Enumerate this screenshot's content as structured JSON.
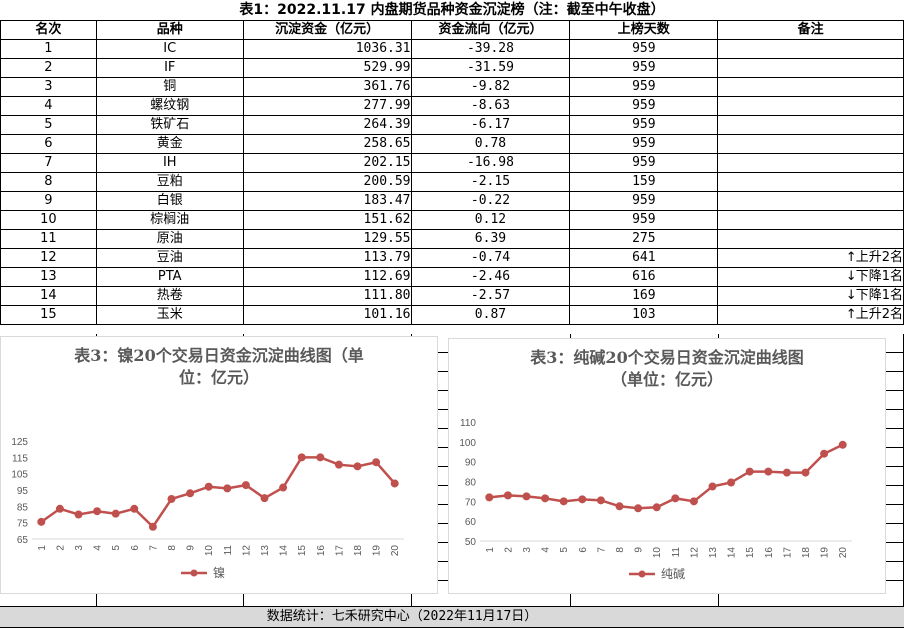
{
  "table_title": "表1：2022.11.17 内盘期货品种资金沉淀榜（注：截至中午收盘）",
  "headers": [
    "名次",
    "品种",
    "沉淀资金（亿元）",
    "资金流向（亿元）",
    "上榜天数",
    "备注"
  ],
  "rows": [
    {
      "rank": "1",
      "name": "IC",
      "amount": "1036.31",
      "flow": "-39.28",
      "days": "959",
      "note": ""
    },
    {
      "rank": "2",
      "name": "IF",
      "amount": "529.99",
      "flow": "-31.59",
      "days": "959",
      "note": ""
    },
    {
      "rank": "3",
      "name": "铜",
      "amount": "361.76",
      "flow": "-9.82",
      "days": "959",
      "note": ""
    },
    {
      "rank": "4",
      "name": "螺纹钢",
      "amount": "277.99",
      "flow": "-8.63",
      "days": "959",
      "note": ""
    },
    {
      "rank": "5",
      "name": "铁矿石",
      "amount": "264.39",
      "flow": "-6.17",
      "days": "959",
      "note": ""
    },
    {
      "rank": "6",
      "name": "黄金",
      "amount": "258.65",
      "flow": "0.78",
      "days": "959",
      "note": ""
    },
    {
      "rank": "7",
      "name": "IH",
      "amount": "202.15",
      "flow": "-16.98",
      "days": "959",
      "note": ""
    },
    {
      "rank": "8",
      "name": "豆粕",
      "amount": "200.59",
      "flow": "-2.15",
      "days": "159",
      "note": ""
    },
    {
      "rank": "9",
      "name": "白银",
      "amount": "183.47",
      "flow": "-0.22",
      "days": "959",
      "note": ""
    },
    {
      "rank": "10",
      "name": "棕榈油",
      "amount": "151.62",
      "flow": "0.12",
      "days": "959",
      "note": ""
    },
    {
      "rank": "11",
      "name": "原油",
      "amount": "129.55",
      "flow": "6.39",
      "days": "275",
      "note": ""
    },
    {
      "rank": "12",
      "name": "豆油",
      "amount": "113.79",
      "flow": "-0.74",
      "days": "641",
      "note": "上升2名",
      "arrow": "↑"
    },
    {
      "rank": "13",
      "name": "PTA",
      "amount": "112.69",
      "flow": "-2.46",
      "days": "616",
      "note": "下降1名",
      "arrow": "↓"
    },
    {
      "rank": "14",
      "name": "热卷",
      "amount": "111.80",
      "flow": "-2.57",
      "days": "169",
      "note": "下降1名",
      "arrow": "↓"
    },
    {
      "rank": "15",
      "name": "玉米",
      "amount": "101.16",
      "flow": "0.87",
      "days": "103",
      "note": "上升2名",
      "arrow": "↑"
    }
  ],
  "footer": "数据统计：七禾研究中心（2022年11月17日）",
  "chart_data": [
    {
      "type": "line",
      "title": "表3：镍20个交易日资金沉淀曲线图（单位：亿元）",
      "title_lines": [
        "表3：镍20个交易日资金沉淀曲线图（单",
        "位：亿元）"
      ],
      "categories": [
        "1",
        "2",
        "3",
        "4",
        "5",
        "6",
        "7",
        "8",
        "9",
        "10",
        "11",
        "12",
        "13",
        "14",
        "15",
        "16",
        "17",
        "18",
        "19",
        "20"
      ],
      "series": [
        {
          "name": "镍",
          "values": [
            75.5,
            83.5,
            80,
            82,
            80.5,
            83.5,
            72.5,
            89.5,
            93,
            97,
            96,
            98,
            90,
            96.5,
            115,
            115,
            110.5,
            109.5,
            112,
            99
          ]
        }
      ],
      "ylim": [
        65,
        125
      ],
      "yticks": [
        "65",
        "75",
        "85",
        "95",
        "105",
        "115",
        "125"
      ],
      "legend": "bottom",
      "color": "#c0504d",
      "grid": false
    },
    {
      "type": "line",
      "title": "表3：纯碱20个交易日资金沉淀曲线图（单位：亿元）",
      "title_lines": [
        "表3：纯碱20个交易日资金沉淀曲线图",
        "（单位：亿元）"
      ],
      "categories": [
        "1",
        "2",
        "3",
        "4",
        "5",
        "6",
        "7",
        "8",
        "9",
        "10",
        "11",
        "12",
        "13",
        "14",
        "15",
        "16",
        "17",
        "18",
        "19",
        "20"
      ],
      "series": [
        {
          "name": "纯碱",
          "values": [
            72,
            73,
            72.5,
            71.5,
            70,
            71,
            70.5,
            67.5,
            66.5,
            67,
            71.5,
            70,
            77.5,
            79.5,
            85,
            85,
            84.5,
            84.5,
            94,
            98.5
          ]
        }
      ],
      "ylim": [
        50,
        110
      ],
      "yticks": [
        "50",
        "60",
        "70",
        "80",
        "90",
        "100",
        "110"
      ],
      "legend": "bottom",
      "color": "#c0504d",
      "grid": false
    }
  ]
}
